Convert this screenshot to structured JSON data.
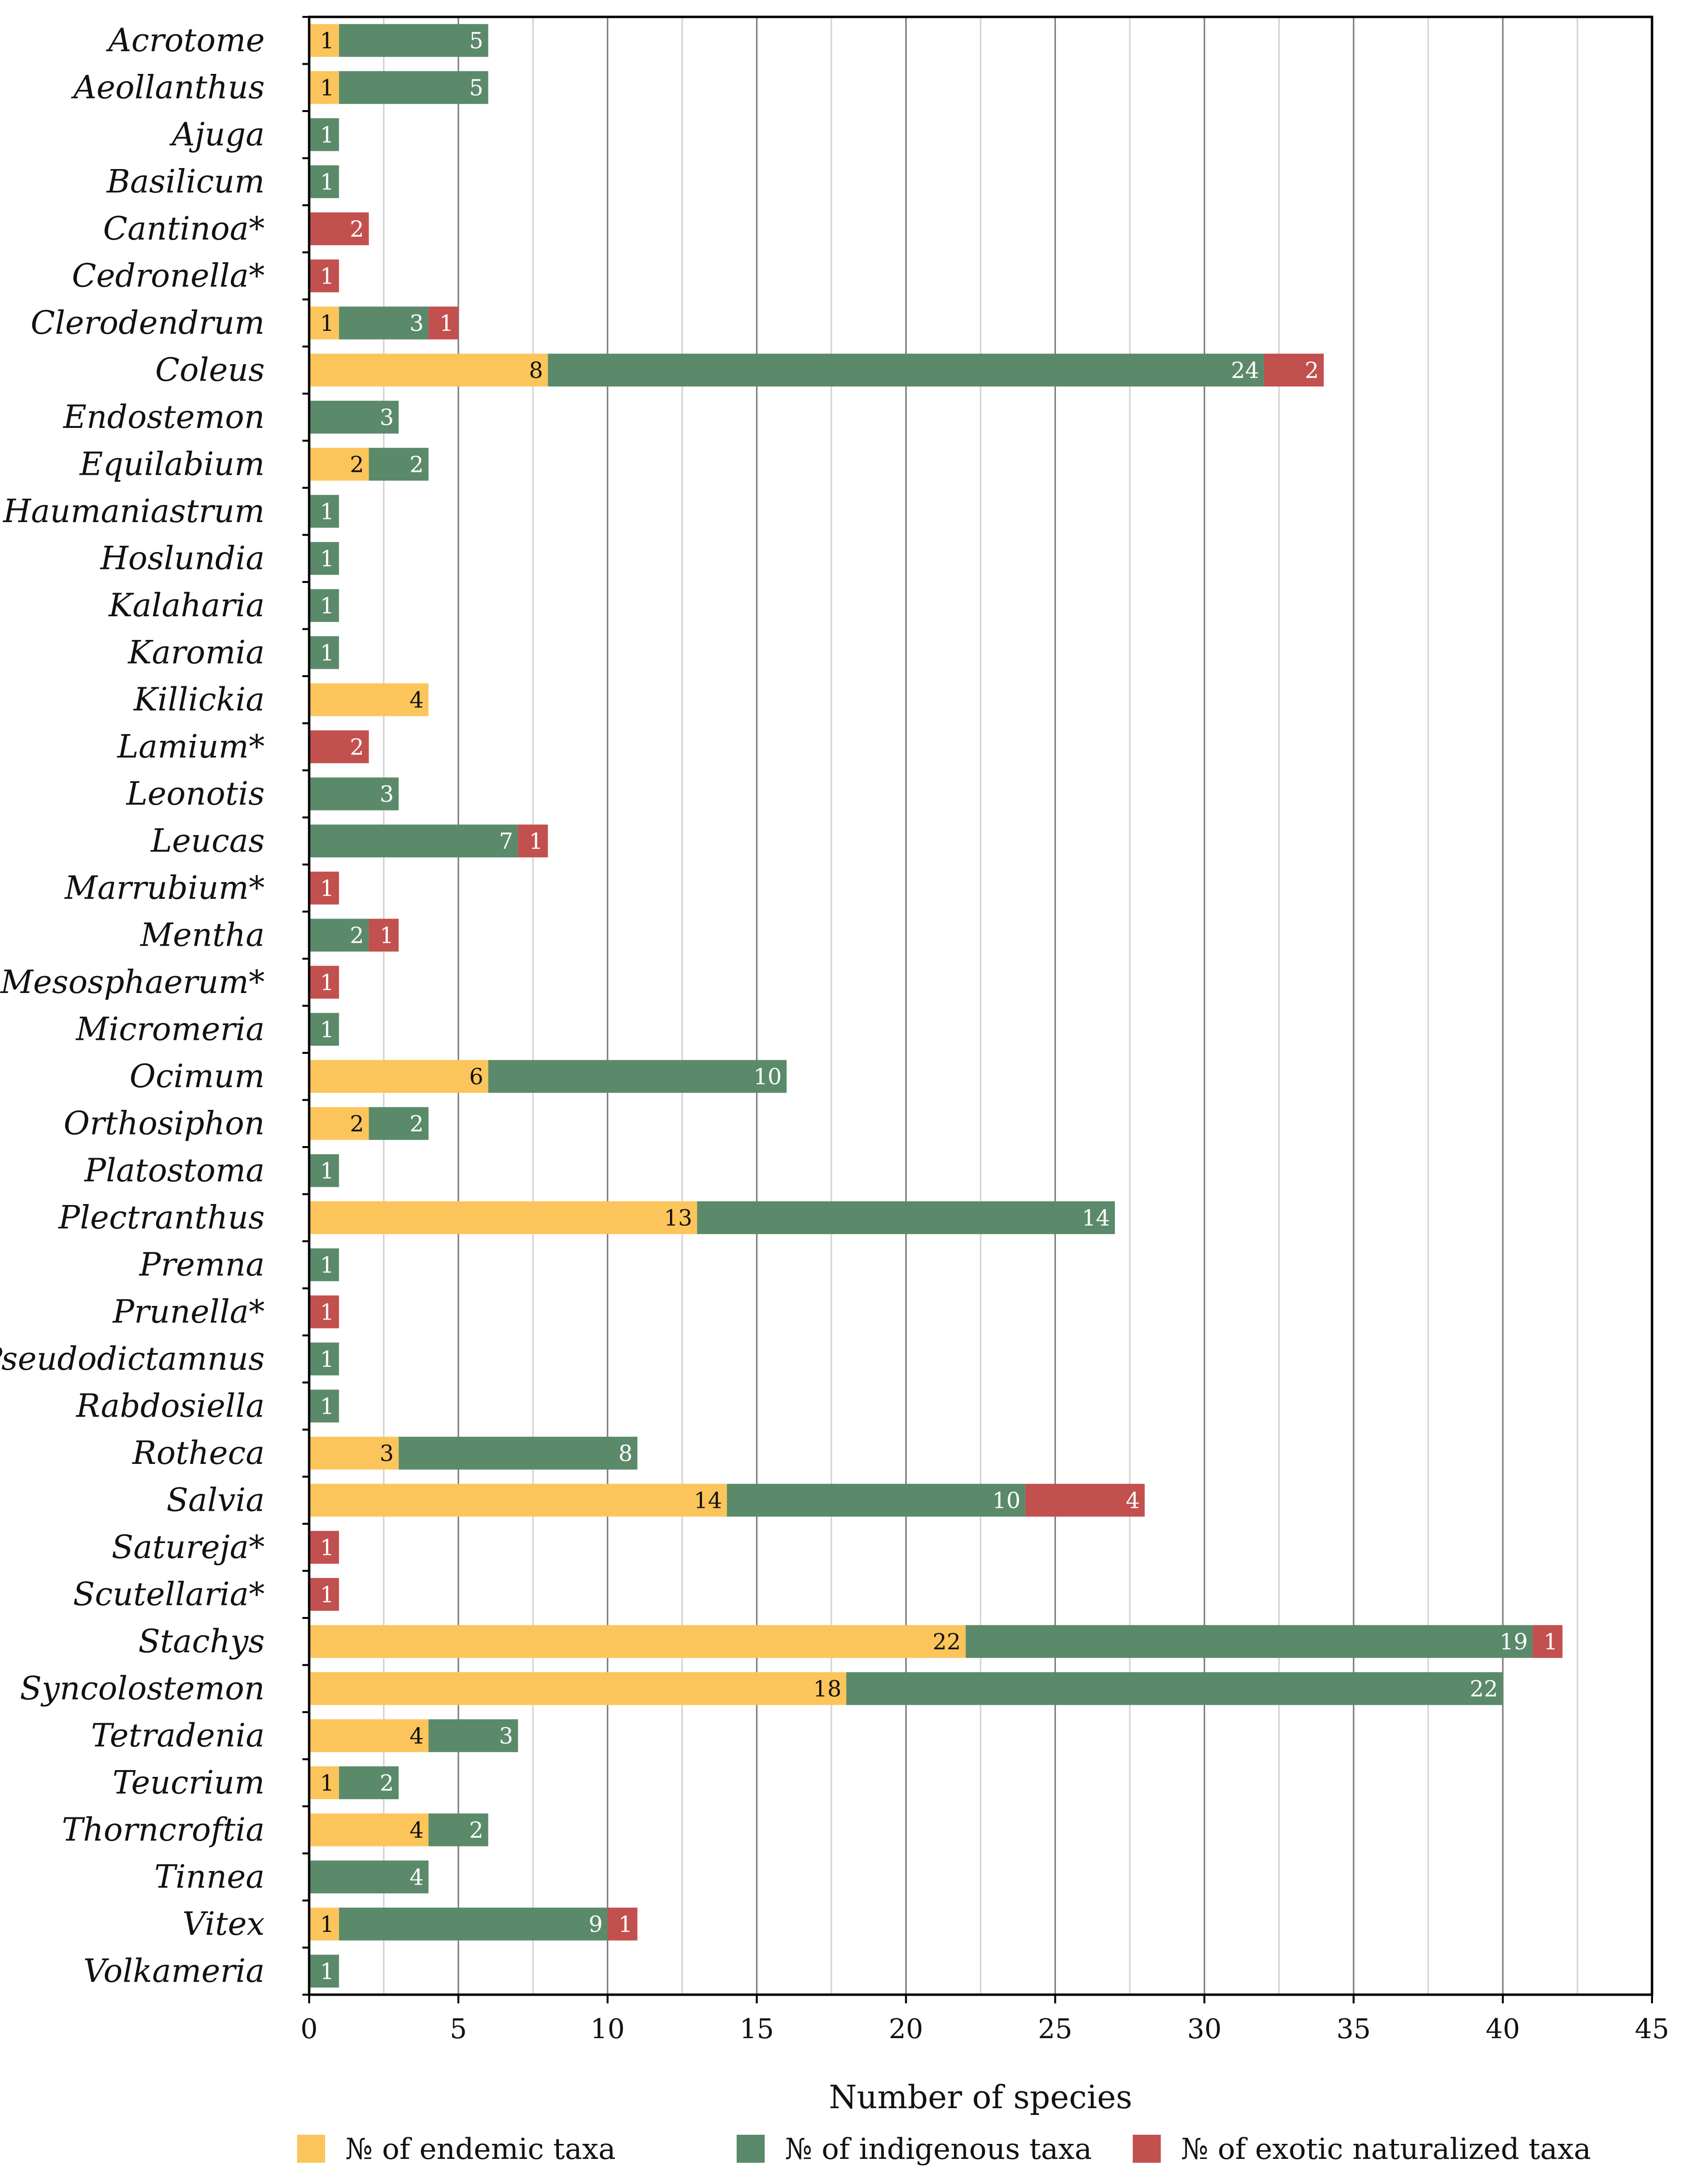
{
  "chart_data": {
    "type": "bar",
    "orientation": "horizontal",
    "stacked": true,
    "title": "",
    "xlabel": "Number of species",
    "ylabel": "",
    "xlim": [
      0,
      45
    ],
    "xticks": [
      0,
      5,
      10,
      15,
      20,
      25,
      30,
      35,
      40,
      45
    ],
    "grid": true,
    "legend_position": "bottom",
    "categories": [
      "Acrotome",
      "Aeollanthus",
      "Ajuga",
      "Basilicum",
      "Cantinoa*",
      "Cedronella*",
      "Clerodendrum",
      "Coleus",
      "Endostemon",
      "Equilabium",
      "Haumaniastrum",
      "Hoslundia",
      "Kalaharia",
      "Karomia",
      "Killickia",
      "Lamium*",
      "Leonotis",
      "Leucas",
      "Marrubium*",
      "Mentha",
      "Mesosphaerum*",
      "Micromeria",
      "Ocimum",
      "Orthosiphon",
      "Platostoma",
      "Plectranthus",
      "Premna",
      "Prunella*",
      "Pseudodictamnus",
      "Rabdosiella",
      "Rotheca",
      "Salvia",
      "Satureja*",
      "Scutellaria*",
      "Stachys",
      "Syncolostemon",
      "Tetradenia",
      "Teucrium",
      "Thorncroftia",
      "Tinnea",
      "Vitex",
      "Volkameria"
    ],
    "series": [
      {
        "name": "№ of endemic taxa",
        "color": "#FCC55B",
        "label_color": "#111111",
        "values": [
          1,
          1,
          0,
          0,
          0,
          0,
          1,
          8,
          0,
          2,
          0,
          0,
          0,
          0,
          4,
          0,
          0,
          0,
          0,
          0,
          0,
          0,
          6,
          2,
          0,
          13,
          0,
          0,
          0,
          0,
          3,
          14,
          0,
          0,
          22,
          18,
          4,
          1,
          4,
          0,
          1,
          0
        ]
      },
      {
        "name": "№ of indigenous taxa",
        "color": "#5A8A6A",
        "label_color": "#FFFFFF",
        "values": [
          5,
          5,
          1,
          1,
          0,
          0,
          3,
          24,
          3,
          2,
          1,
          1,
          1,
          1,
          0,
          0,
          3,
          7,
          0,
          2,
          0,
          1,
          10,
          2,
          1,
          14,
          1,
          0,
          1,
          1,
          8,
          10,
          0,
          0,
          19,
          22,
          3,
          2,
          2,
          4,
          9,
          1
        ]
      },
      {
        "name": "№ of exotic naturalized taxa",
        "color": "#C2504F",
        "label_color": "#FFFFFF",
        "values": [
          0,
          0,
          0,
          0,
          2,
          1,
          1,
          2,
          0,
          0,
          0,
          0,
          0,
          0,
          0,
          2,
          0,
          1,
          1,
          1,
          1,
          0,
          0,
          0,
          0,
          0,
          0,
          1,
          0,
          0,
          0,
          4,
          1,
          1,
          1,
          0,
          0,
          0,
          0,
          0,
          1,
          0
        ]
      }
    ]
  }
}
